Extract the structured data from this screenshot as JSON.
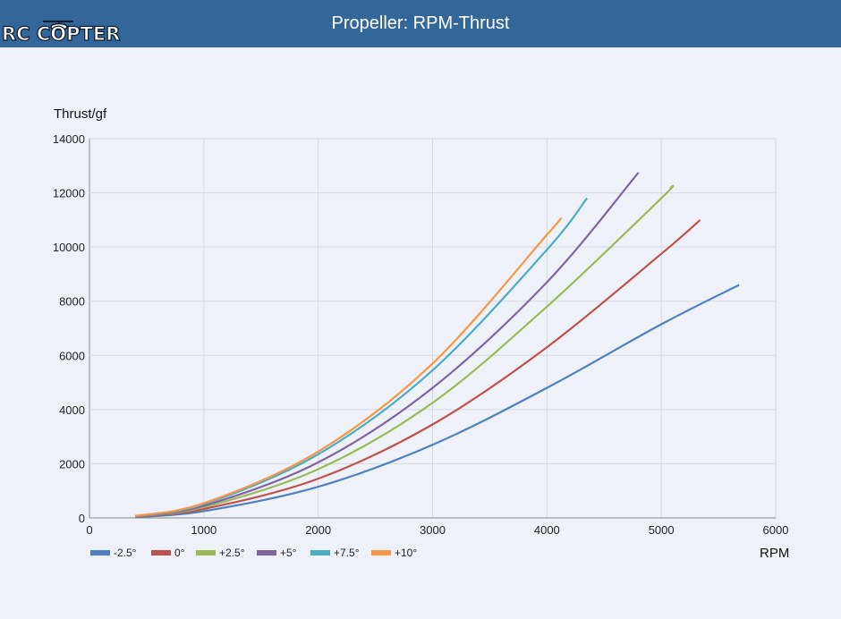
{
  "header": {
    "title": "Propeller: RPM-Thrust",
    "logo_text": "RC COPTER"
  },
  "chart_data": {
    "type": "line",
    "title": "Propeller: RPM-Thrust",
    "xlabel": "RPM",
    "ylabel": "Thrust/gf",
    "xlim": [
      0,
      6000
    ],
    "ylim": [
      0,
      14000
    ],
    "xticks": [
      "0",
      "1000",
      "2000",
      "3000",
      "4000",
      "5000",
      "6000"
    ],
    "yticks": [
      "0",
      "2000",
      "4000",
      "6000",
      "8000",
      "10000",
      "12000",
      "14000"
    ],
    "grid": true,
    "legend_position": "bottom-left",
    "series": [
      {
        "name": "-2.5°",
        "color": "#4f7fbd",
        "x": [
          400,
          1000,
          2000,
          3000,
          4000,
          5000,
          5680
        ],
        "y": [
          30,
          250,
          1150,
          2700,
          4800,
          7150,
          8600
        ]
      },
      {
        "name": "0°",
        "color": "#c0504d",
        "x": [
          400,
          1000,
          2000,
          3000,
          4000,
          5000,
          5340
        ],
        "y": [
          45,
          330,
          1450,
          3450,
          6300,
          9750,
          11000
        ]
      },
      {
        "name": "+2.5°",
        "color": "#9bbb59",
        "x": [
          400,
          1000,
          2000,
          3000,
          4000,
          5000,
          5080
        ],
        "y": [
          55,
          400,
          1800,
          4250,
          7800,
          11800,
          12200
        ]
      },
      {
        "name": "+5°",
        "color": "#8064a2",
        "x": [
          400,
          1000,
          2000,
          3000,
          4000,
          4800
        ],
        "y": [
          60,
          450,
          2050,
          4800,
          8700,
          12750
        ]
      },
      {
        "name": "+7.5°",
        "color": "#4bacc6",
        "x": [
          400,
          1000,
          2000,
          3000,
          4000,
          4350
        ],
        "y": [
          70,
          510,
          2350,
          5450,
          9900,
          11800
        ]
      },
      {
        "name": "+10°",
        "color": "#f79646",
        "x": [
          400,
          1000,
          2000,
          3000,
          4000,
          4120
        ],
        "y": [
          75,
          540,
          2450,
          5700,
          10450,
          11050
        ]
      }
    ]
  }
}
